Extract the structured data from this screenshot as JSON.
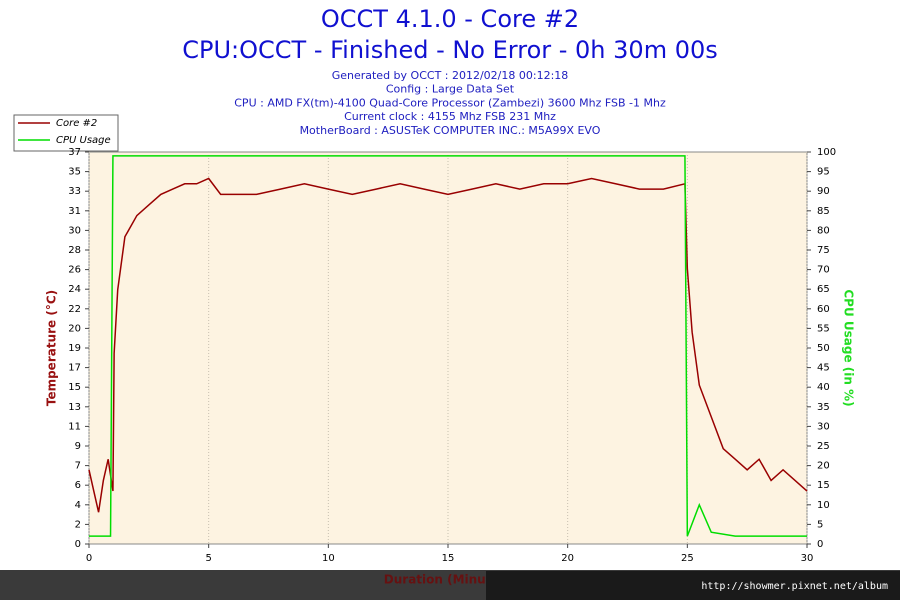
{
  "chart_data": {
    "type": "line",
    "title": "OCCT 4.1.0 - Core #2",
    "subtitle": "CPU:OCCT - Finished - No Error - 0h 30m 00s",
    "info": [
      "Generated by OCCT : 2012/02/18 00:12:18",
      "Config : Large Data Set",
      "CPU : AMD FX(tm)-4100 Quad-Core Processor (Zambezi) 3600 Mhz FSB -1 Mhz",
      "Current clock : 4155 Mhz FSB 231 Mhz",
      "MotherBoard : ASUSTeK COMPUTER INC.: M5A99X EVO"
    ],
    "xlabel": "Duration (Minutes)",
    "ylabel": "Temperature (°C)",
    "y2label": "CPU Usage (in %)",
    "watermark": "http://showmer.pixnet.net/album",
    "xlim": [
      0,
      30
    ],
    "xticks": [
      0,
      5,
      10,
      15,
      20,
      25,
      30
    ],
    "ylim": [
      0,
      37
    ],
    "yticks": [
      0,
      {
        "value": 1.85,
        "label": "2"
      },
      {
        "value": 3.7,
        "label": "4"
      },
      {
        "value": 5.55,
        "label": "6"
      },
      {
        "value": 7.4,
        "label": "7"
      },
      {
        "value": 9.25,
        "label": "9"
      },
      {
        "value": 11.1,
        "label": "11"
      },
      {
        "value": 12.95,
        "label": "13"
      },
      {
        "value": 14.8,
        "label": "15"
      },
      {
        "value": 16.65,
        "label": "17"
      },
      {
        "value": 18.5,
        "label": "19"
      },
      {
        "value": 20.35,
        "label": "20"
      },
      {
        "value": 22.2,
        "label": "22"
      },
      {
        "value": 24.05,
        "label": "24"
      },
      {
        "value": 25.9,
        "label": "26"
      },
      {
        "value": 27.75,
        "label": "28"
      },
      {
        "value": 29.6,
        "label": "30"
      },
      {
        "value": 31.45,
        "label": "31"
      },
      {
        "value": 33.3,
        "label": "33"
      },
      {
        "value": 35.15,
        "label": "35"
      },
      37
    ],
    "y2lim": [
      0,
      100
    ],
    "y2ticks": [
      0,
      5,
      10,
      15,
      20,
      25,
      30,
      35,
      40,
      45,
      50,
      55,
      60,
      65,
      70,
      75,
      80,
      85,
      90,
      95,
      100
    ],
    "grid": true,
    "legend": "top-left",
    "series": [
      {
        "name": "Core #2",
        "color": "#990000",
        "x": [
          0,
          0.2,
          0.4,
          0.6,
          0.8,
          1.0,
          1.05,
          1.2,
          1.5,
          2,
          2.5,
          3,
          3.5,
          4,
          4.5,
          5,
          5.5,
          6,
          7,
          8,
          9,
          10,
          11,
          12,
          13,
          14,
          15,
          16,
          17,
          18,
          19,
          20,
          21,
          22,
          23,
          24,
          24.9,
          25,
          25.2,
          25.5,
          26,
          26.5,
          27,
          27.5,
          28,
          28.5,
          29,
          29.5,
          30
        ],
        "values": [
          7,
          5,
          3,
          6,
          8,
          5,
          18,
          24,
          29,
          31,
          32,
          33,
          33.5,
          34,
          34,
          34.5,
          33,
          33,
          33,
          33.5,
          34,
          33.5,
          33,
          33.5,
          34,
          33.5,
          33,
          33.5,
          34,
          33.5,
          34,
          34,
          34.5,
          34,
          33.5,
          33.5,
          34,
          26,
          20,
          15,
          12,
          9,
          8,
          7,
          8,
          6,
          7,
          6,
          5
        ]
      },
      {
        "name": "CPU Usage",
        "color": "#00dd00",
        "axis": "y2",
        "x": [
          0,
          0.9,
          1.0,
          5,
          10,
          15,
          20,
          24.9,
          25,
          25.5,
          26,
          27,
          28,
          29,
          30
        ],
        "values": [
          2,
          2,
          99,
          99,
          99,
          99,
          99,
          99,
          2,
          10,
          3,
          2,
          2,
          2,
          2
        ]
      }
    ]
  }
}
